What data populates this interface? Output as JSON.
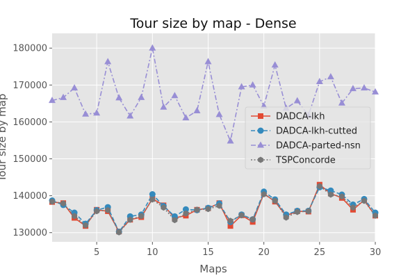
{
  "chart_data": {
    "type": "line",
    "title": "Tour size by map - Dense",
    "xlabel": "Maps",
    "ylabel": "Tour size by map",
    "xlim": [
      1,
      30
    ],
    "ylim": [
      127500,
      184000
    ],
    "xticks": [
      5,
      10,
      15,
      20,
      25,
      30
    ],
    "yticks": [
      130000,
      140000,
      150000,
      160000,
      170000,
      180000
    ],
    "xtick_labels": [
      "5",
      "10",
      "15",
      "20",
      "25",
      "30"
    ],
    "ytick_labels": [
      "130000",
      "140000",
      "150000",
      "160000",
      "170000",
      "180000"
    ],
    "grid": true,
    "legend_position": "center-right",
    "x": [
      1,
      2,
      3,
      4,
      5,
      6,
      7,
      8,
      9,
      10,
      11,
      12,
      13,
      14,
      15,
      16,
      17,
      18,
      19,
      20,
      21,
      22,
      23,
      24,
      25,
      26,
      27,
      28,
      29,
      30
    ],
    "series": [
      {
        "name": "DADCA-lkh",
        "color": "#e24a33",
        "marker": "square",
        "linestyle": "solid",
        "values": [
          138300,
          138000,
          134000,
          131800,
          136200,
          135800,
          130300,
          133500,
          134200,
          139200,
          137400,
          134000,
          134600,
          136200,
          136600,
          138000,
          131800,
          134700,
          132900,
          140600,
          138400,
          134600,
          135800,
          135700,
          143000,
          140600,
          139400,
          136200,
          138800,
          134600
        ]
      },
      {
        "name": "DADCA-lkh-cutted",
        "color": "#348abd",
        "marker": "circle",
        "linestyle": "dashed",
        "values": [
          138700,
          137500,
          135400,
          132400,
          136100,
          136900,
          130200,
          134400,
          134900,
          140400,
          137200,
          134400,
          136300,
          136100,
          136700,
          137900,
          132900,
          134900,
          133600,
          141100,
          139000,
          134900,
          135900,
          135900,
          142300,
          141400,
          140300,
          137600,
          139100,
          135400
        ]
      },
      {
        "name": "DADCA-parted-nsn",
        "color": "#988ed5",
        "marker": "triangle",
        "linestyle": "dashdot",
        "values": [
          165800,
          166600,
          169200,
          162100,
          162400,
          176300,
          166500,
          161600,
          166600,
          180000,
          164000,
          167100,
          161100,
          163000,
          176300,
          162000,
          154800,
          169500,
          170000,
          164300,
          175400,
          163700,
          165700,
          161800,
          170900,
          172200,
          165100,
          169000,
          169200,
          168100
        ]
      },
      {
        "name": "TSPConcorde",
        "color": "#777777",
        "marker": "hexagon",
        "linestyle": "dotted",
        "values": [
          138400,
          137900,
          134500,
          132000,
          135800,
          136100,
          130100,
          133500,
          134500,
          139000,
          136800,
          133400,
          135200,
          136200,
          136400,
          137300,
          133200,
          134700,
          133600,
          140400,
          138600,
          134100,
          135600,
          135800,
          142600,
          140300,
          139800,
          136800,
          138600,
          134600
        ]
      }
    ]
  }
}
